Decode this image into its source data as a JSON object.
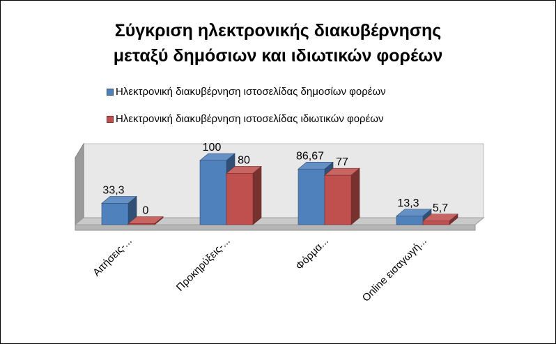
{
  "title_lines": [
    "Σύγκριση ηλεκτρονικής διακυβέρνησης",
    "μεταξύ δημόσιων και ιδιωτικών φορέων"
  ],
  "chart_data": {
    "type": "bar",
    "title": "Σύγκριση ηλεκτρονικής διακυβέρνησης μεταξύ δημόσιων και ιδιωτικών φορέων",
    "categories": [
      "Αιτήσεις-...",
      "Προκηρύξεις-...",
      "Φόρμα...",
      "Online εισαγωγή..."
    ],
    "series": [
      {
        "name": "Ηλεκτρονική διακυβέρνηση ιστοσελίδας δημοσίων φορέων",
        "values": [
          33.3,
          100,
          86.67,
          13.3
        ],
        "labels": [
          "33,3",
          "100",
          "86,67",
          "13,3"
        ],
        "color": "#4f81bd"
      },
      {
        "name": "Ηλεκτρονική διακυβέρνηση ιστοσελίδας ιδιωτικών φορέων",
        "values": [
          0,
          80,
          77,
          5.7
        ],
        "labels": [
          "0",
          "80",
          "77",
          "5,7"
        ],
        "color": "#c0504d"
      }
    ],
    "ylim": [
      0,
      100
    ],
    "legend_position": "top",
    "grid": false,
    "style": "3d-clustered"
  }
}
